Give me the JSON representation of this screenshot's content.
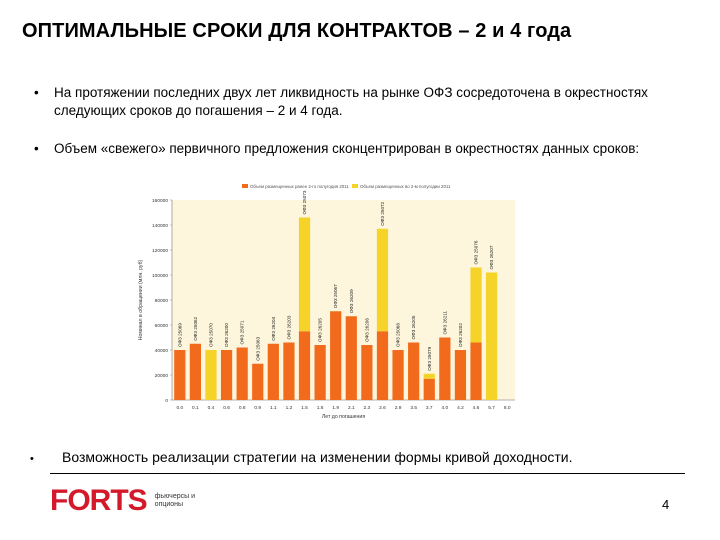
{
  "title": "ОПТИМАЛЬНЫЕ СРОКИ ДЛЯ КОНТРАКТОВ – 2 и 4 года",
  "bullets": [
    "На протяжении последних двух лет ликвидность на рынке ОФЗ  сосредоточена в окрестностях следующих сроков до погашения – 2 и 4 года.",
    "Объем «свежего» первичного предложения сконцентрирован в окрестностях данных сроков:",
    "Возможность реализации стратегии на изменении формы кривой доходности."
  ],
  "bullet_glyph": "•",
  "logo": {
    "word": "FORTS",
    "subtitle": "фьючерсы и опционы"
  },
  "page_number": "4",
  "chart_data": {
    "type": "bar",
    "stacked": true,
    "xlabel": "Лет до погашения",
    "ylabel": "Номинал в обращении (млн. руб)",
    "ylim": [
      0,
      160000
    ],
    "yticks": [
      0,
      20000,
      40000,
      60000,
      80000,
      100000,
      120000,
      140000,
      160000
    ],
    "grid": false,
    "legend_position": "top",
    "colors": {
      "plot_bg": "#fdf6dc",
      "series1": "#f26b1d",
      "series2": "#f5d328"
    },
    "categories": [
      "0.0",
      "0.1",
      "0.4",
      "0.6",
      "0.8",
      "0.9",
      "1.1",
      "1.2",
      "1.5",
      "1.6",
      "1.9",
      "2.1",
      "2.3",
      "2.6",
      "2.9",
      "3.5",
      "3.7",
      "4.0",
      "4.2",
      "4.6",
      "5.7",
      "8.0"
    ],
    "bar_labels": [
      "ОФЗ 25069",
      "ОФЗ 25062",
      "ОФЗ 25070",
      "ОФЗ 26200",
      "ОФЗ 25071",
      "ОФЗ 25063",
      "ОФЗ 26204",
      "ОФЗ 26203",
      "ОФЗ 25073",
      "ОФЗ 26205",
      "ОФЗ 25067",
      "ОФЗ 26209",
      "ОФЗ 26206",
      "ОФЗ 25072",
      "ОФЗ 25068",
      "ОФЗ 26205",
      "ОФЗ 25079",
      "ОФЗ 26211",
      "ОФЗ 26202",
      "ОФЗ 25076",
      "ОФЗ 26207",
      ""
    ],
    "series": [
      {
        "name": "Объем размещенных ранее 2-го полугодия 2011",
        "values": [
          40000,
          45000,
          0,
          40000,
          42000,
          29000,
          45000,
          46000,
          55000,
          44000,
          71000,
          67000,
          44000,
          55000,
          40000,
          46000,
          17000,
          50000,
          40000,
          46000,
          0,
          0
        ]
      },
      {
        "name": "Объем размещенных во 2-м полугодии 2011",
        "values": [
          0,
          0,
          40000,
          0,
          0,
          0,
          0,
          0,
          91000,
          0,
          0,
          0,
          0,
          82000,
          0,
          0,
          4000,
          0,
          0,
          60000,
          102000,
          0
        ]
      }
    ]
  }
}
